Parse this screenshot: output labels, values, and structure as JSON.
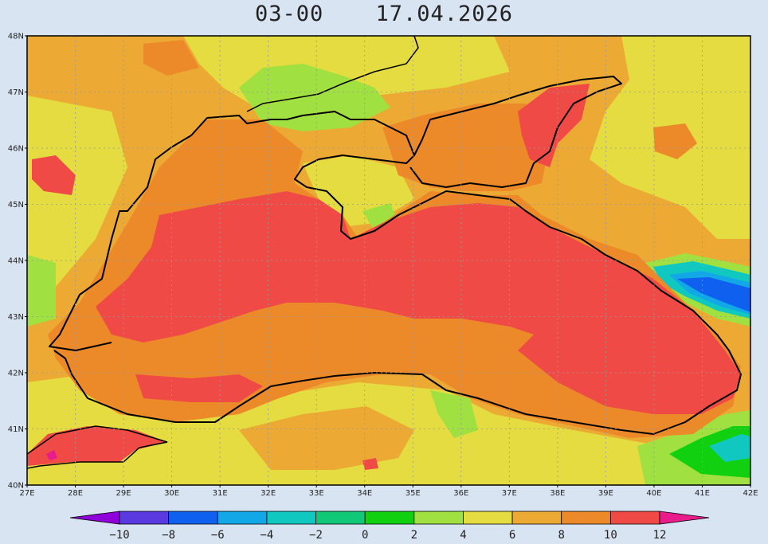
{
  "header": {
    "time": "03-00",
    "date": "17.04.2026"
  },
  "map": {
    "lat_labels": [
      "48N",
      "47N",
      "46N",
      "45N",
      "44N",
      "43N",
      "42N",
      "41N",
      "40N"
    ],
    "lon_labels": [
      "27E",
      "28E",
      "29E",
      "30E",
      "31E",
      "32E",
      "33E",
      "34E",
      "35E",
      "36E",
      "37E",
      "38E",
      "39E",
      "40E",
      "41E",
      "42E"
    ],
    "lat_range": [
      40,
      48
    ],
    "lon_range": [
      27,
      42
    ],
    "grid": "dotted"
  },
  "colorbar": {
    "labels": [
      "-10",
      "-8",
      "-6",
      "-4",
      "-2",
      "0",
      "2",
      "4",
      "6",
      "8",
      "10",
      "12"
    ],
    "colors": [
      "#9000d8",
      "#5a3ae0",
      "#1060f0",
      "#12a8e8",
      "#10c8c0",
      "#10c878",
      "#10d010",
      "#a0e040",
      "#e4dc40",
      "#ecaa34",
      "#ec8a2a",
      "#f04a46",
      "#ea1c8c"
    ]
  },
  "colors": {
    "sea_main": "#f04a46",
    "sea_mid": "#ec8a2a",
    "land_warm": "#ecaa34",
    "land_cool": "#e4dc40",
    "land_green": "#a0e040",
    "cold_green": "#10d010",
    "cold_cyan": "#10c8c0",
    "cold_blue": "#1060f0"
  }
}
